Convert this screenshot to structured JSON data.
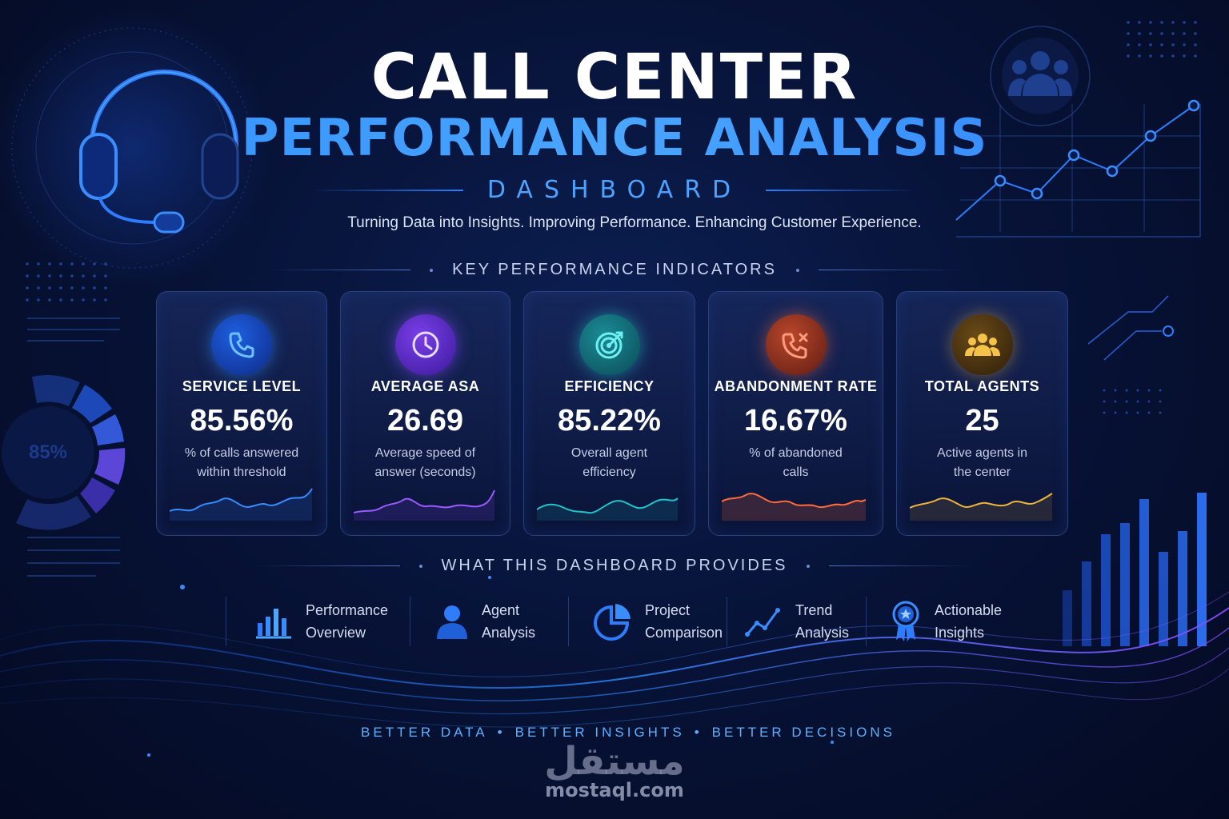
{
  "header": {
    "title_line1": "CALL CENTER",
    "title_line2": "PERFORMANCE ANALYSIS",
    "title_line3": "DASHBOARD",
    "tagline": "Turning Data into Insights. Improving Performance. Enhancing Customer Experience."
  },
  "kpi_section": {
    "heading": "KEY PERFORMANCE INDICATORS",
    "cards": [
      {
        "label": "SERVICE LEVEL",
        "value": "85.56%",
        "desc_line1": "% of calls answered",
        "desc_line2": "within threshold",
        "icon": "phone-icon",
        "color": "#2f8dff"
      },
      {
        "label": "AVERAGE ASA",
        "value": "26.69",
        "desc_line1": "Average speed of",
        "desc_line2": "answer (seconds)",
        "icon": "clock-icon",
        "color": "#8a4dff"
      },
      {
        "label": "EFFICIENCY",
        "value": "85.22%",
        "desc_line1": "Overall agent",
        "desc_line2": "efficiency",
        "icon": "target-icon",
        "color": "#23c3c9"
      },
      {
        "label": "ABANDONMENT RATE",
        "value": "16.67%",
        "desc_line1": "% of abandoned",
        "desc_line2": "calls",
        "icon": "phone-missed-icon",
        "color": "#ff6a3d"
      },
      {
        "label": "TOTAL AGENTS",
        "value": "25",
        "desc_line1": "Active agents in",
        "desc_line2": "the center",
        "icon": "agents-icon",
        "color": "#f0b43a"
      }
    ]
  },
  "provides_section": {
    "heading": "WHAT THIS DASHBOARD PROVIDES",
    "items": [
      {
        "line1": "Performance",
        "line2": "Overview",
        "icon": "bar-chart-icon"
      },
      {
        "line1": "Agent",
        "line2": "Analysis",
        "icon": "person-icon"
      },
      {
        "line1": "Project",
        "line2": "Comparison",
        "icon": "pie-chart-icon"
      },
      {
        "line1": "Trend",
        "line2": "Analysis",
        "icon": "trend-line-icon"
      },
      {
        "line1": "Actionable",
        "line2": "Insights",
        "icon": "award-badge-icon"
      }
    ]
  },
  "footer": {
    "tag1": "BETTER DATA",
    "tag2": "BETTER INSIGHTS",
    "tag3": "BETTER DECISIONS"
  },
  "decor": {
    "gauge_label": "85%"
  },
  "watermark": {
    "logo": "مستقل",
    "url": "mostaql.com"
  }
}
